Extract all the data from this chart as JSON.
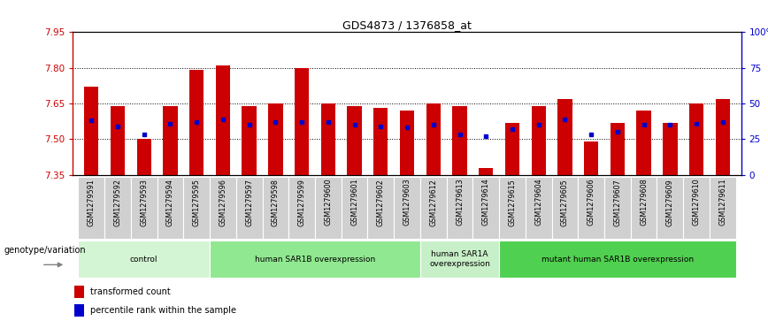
{
  "title": "GDS4873 / 1376858_at",
  "samples": [
    "GSM1279591",
    "GSM1279592",
    "GSM1279593",
    "GSM1279594",
    "GSM1279595",
    "GSM1279596",
    "GSM1279597",
    "GSM1279598",
    "GSM1279599",
    "GSM1279600",
    "GSM1279601",
    "GSM1279602",
    "GSM1279603",
    "GSM1279612",
    "GSM1279613",
    "GSM1279614",
    "GSM1279615",
    "GSM1279604",
    "GSM1279605",
    "GSM1279606",
    "GSM1279607",
    "GSM1279608",
    "GSM1279609",
    "GSM1279610",
    "GSM1279611"
  ],
  "transformed_count": [
    7.72,
    7.64,
    7.5,
    7.64,
    7.79,
    7.81,
    7.64,
    7.65,
    7.8,
    7.65,
    7.64,
    7.63,
    7.62,
    7.65,
    7.64,
    7.38,
    7.57,
    7.64,
    7.67,
    7.49,
    7.57,
    7.62,
    7.57,
    7.65,
    7.67
  ],
  "percentile_rank": [
    7.58,
    7.555,
    7.521,
    7.563,
    7.573,
    7.582,
    7.562,
    7.571,
    7.571,
    7.572,
    7.562,
    7.553,
    7.551,
    7.562,
    7.521,
    7.511,
    7.541,
    7.562,
    7.582,
    7.521,
    7.531,
    7.562,
    7.562,
    7.563,
    7.572
  ],
  "groups": [
    {
      "label": "control",
      "start": 0,
      "end": 5,
      "color": "#d4f5d4"
    },
    {
      "label": "human SAR1B overexpression",
      "start": 5,
      "end": 13,
      "color": "#90e890"
    },
    {
      "label": "human SAR1A\noverexpression",
      "start": 13,
      "end": 16,
      "color": "#c8f0c8"
    },
    {
      "label": "mutant human SAR1B overexpression",
      "start": 16,
      "end": 25,
      "color": "#50d050"
    }
  ],
  "ymin": 7.35,
  "ymax": 7.95,
  "yticks": [
    7.35,
    7.5,
    7.65,
    7.8,
    7.95
  ],
  "y2ticks": [
    0,
    25,
    50,
    75,
    100
  ],
  "y2labels": [
    "0",
    "25",
    "50",
    "75",
    "100%"
  ],
  "bar_color": "#cc0000",
  "dot_color": "#0000cc",
  "label_color_left": "#cc0000",
  "label_color_right": "#0000cc",
  "xticklabel_bg": "#d0d0d0",
  "legend_red_label": "transformed count",
  "legend_blue_label": "percentile rank within the sample",
  "genotype_label": "genotype/variation"
}
